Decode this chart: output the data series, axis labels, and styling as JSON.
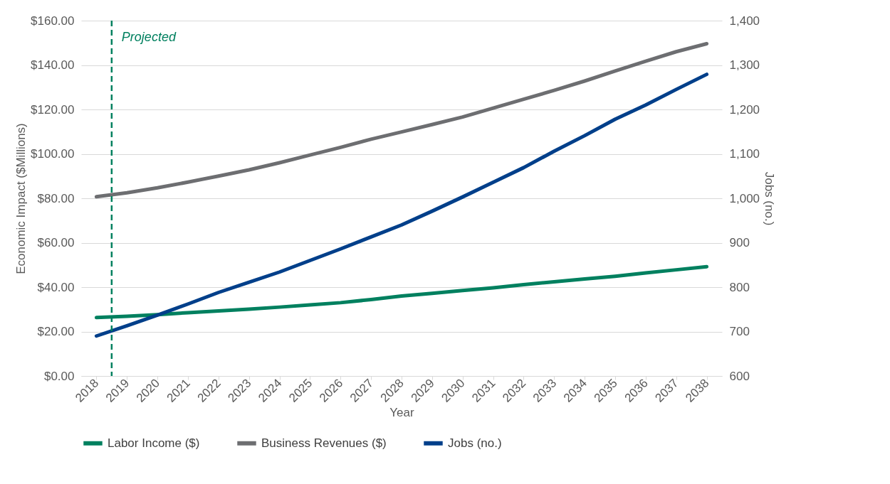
{
  "chart_data": {
    "type": "line",
    "xlabel": "Year",
    "ylabel": "Economic Impact ($Millions)",
    "y2label": "Jobs (no.)",
    "x": [
      2018,
      2019,
      2020,
      2021,
      2022,
      2023,
      2024,
      2025,
      2026,
      2027,
      2028,
      2029,
      2030,
      2031,
      2032,
      2033,
      2034,
      2035,
      2036,
      2037,
      2038
    ],
    "xlim": [
      2017.5,
      2038.5
    ],
    "xticks": [
      2018,
      2019,
      2020,
      2021,
      2022,
      2023,
      2024,
      2025,
      2026,
      2027,
      2028,
      2029,
      2030,
      2031,
      2032,
      2033,
      2034,
      2035,
      2036,
      2037,
      2038
    ],
    "ylim": [
      0,
      160
    ],
    "yticks": [
      {
        "value": 0,
        "label": "$0.00"
      },
      {
        "value": 20,
        "label": "$20.00"
      },
      {
        "value": 40,
        "label": "$40.00"
      },
      {
        "value": 60,
        "label": "$60.00"
      },
      {
        "value": 80,
        "label": "$80.00"
      },
      {
        "value": 100,
        "label": "$100.00"
      },
      {
        "value": 120,
        "label": "$120.00"
      },
      {
        "value": 140,
        "label": "$140.00"
      },
      {
        "value": 160,
        "label": "$160.00"
      }
    ],
    "y2lim": [
      600,
      1400
    ],
    "y2ticks": [
      {
        "value": 600,
        "label": "600"
      },
      {
        "value": 700,
        "label": "700"
      },
      {
        "value": 800,
        "label": "800"
      },
      {
        "value": 900,
        "label": "900"
      },
      {
        "value": 1000,
        "label": "1,000"
      },
      {
        "value": 1100,
        "label": "1,100"
      },
      {
        "value": 1200,
        "label": "1,200"
      },
      {
        "value": 1300,
        "label": "1,300"
      },
      {
        "value": 1400,
        "label": "1,400"
      }
    ],
    "series": [
      {
        "name": "Labor Income ($)",
        "color": "#00805f",
        "values": [
          26.3,
          26.9,
          27.6,
          28.5,
          29.3,
          30.1,
          31.0,
          32.0,
          33.0,
          34.4,
          36.0,
          37.2,
          38.5,
          39.7,
          41.1,
          42.4,
          43.7,
          44.9,
          46.4,
          47.8,
          49.2
        ]
      },
      {
        "name": "Business Revenues ($)",
        "color": "#6d6e71",
        "values": [
          80.7,
          82.5,
          84.7,
          87.3,
          90.0,
          92.8,
          96.0,
          99.5,
          102.9,
          106.6,
          109.9,
          113.2,
          116.6,
          120.6,
          124.6,
          128.6,
          132.8,
          137.3,
          141.7,
          146.0,
          149.6
        ]
      },
      {
        "name": "Jobs (no.)",
        "color": "#003f8a",
        "axis": "y2",
        "values": [
          690,
          713,
          737,
          762,
          788,
          811,
          834,
          860,
          886,
          913,
          940,
          971,
          1003,
          1036,
          1069,
          1106,
          1141,
          1178,
          1210,
          1245,
          1279
        ]
      }
    ],
    "ref_lines": [
      {
        "axis": "x",
        "value": 2018.5,
        "label": "Projected",
        "color": "#00805f",
        "line_style": "dashed"
      }
    ],
    "grid": "y",
    "legend": "bottom",
    "line_style": "solid"
  }
}
